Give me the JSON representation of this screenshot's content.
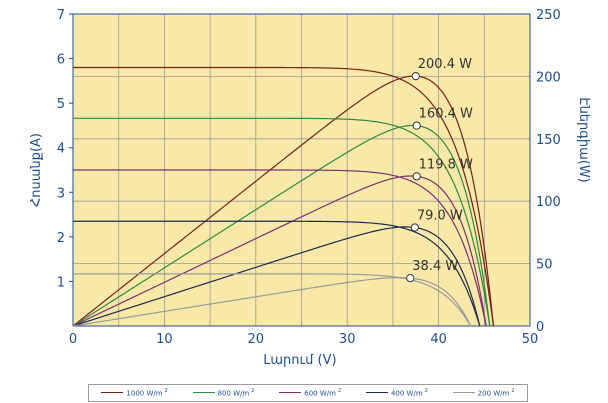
{
  "chart_data": {
    "type": "line",
    "xlabel": "Լարում (V)",
    "ylabel_left": "Հոսանք(A)",
    "ylabel_right": "Էներգիա(W)",
    "xlim": [
      0,
      50
    ],
    "ylim_left": [
      0,
      7
    ],
    "ylim_right": [
      0,
      250
    ],
    "x_ticks": [
      "0",
      "10",
      "20",
      "30",
      "40",
      "50"
    ],
    "y_ticks_left": [
      "1",
      "2",
      "3",
      "4",
      "5",
      "6",
      "7"
    ],
    "y_ticks_right": [
      "0",
      "50",
      "100",
      "150",
      "200",
      "250"
    ],
    "grid": true,
    "legend_position": "bottom",
    "series": [
      {
        "name": "1000 W/m",
        "color": "#7a1f1f",
        "isc": 5.8,
        "voc": 46.0,
        "vmp": 37.5,
        "imp": 5.34,
        "pmax_label": "200.4 W"
      },
      {
        "name": "800 W/m",
        "color": "#2e8b3e",
        "isc": 4.66,
        "voc": 45.6,
        "vmp": 37.6,
        "imp": 4.27,
        "pmax_label": "160.4 W"
      },
      {
        "name": "600 W/m",
        "color": "#7d3070",
        "isc": 3.5,
        "voc": 45.2,
        "vmp": 37.6,
        "imp": 3.19,
        "pmax_label": "119.8 W"
      },
      {
        "name": "400 W/m",
        "color": "#1c2a4e",
        "isc": 2.35,
        "voc": 44.5,
        "vmp": 37.4,
        "imp": 2.11,
        "pmax_label": "79.0 W"
      },
      {
        "name": "200 W/m",
        "color": "#9a9a9a",
        "isc": 1.17,
        "voc": 43.5,
        "vmp": 36.9,
        "imp": 1.04,
        "pmax_label": "38.4 W"
      }
    ]
  },
  "legend": {
    "unit_superscript": "2",
    "items": [
      "1000 W/m",
      "800 W/m",
      "600 W/m",
      "400 W/m",
      "200 W/m"
    ]
  }
}
